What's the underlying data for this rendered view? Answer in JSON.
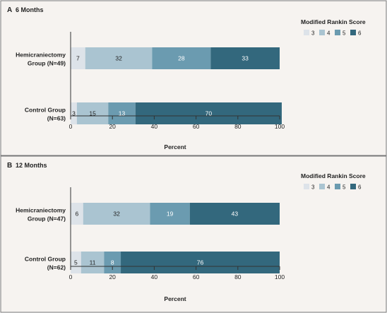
{
  "colors": {
    "score3": "#dde3e9",
    "score4": "#aac4d1",
    "score5": "#6b9bb0",
    "score6": "#33687d",
    "panel_bg": "#f6f3f0",
    "frame": "#777777",
    "axis": "#333333",
    "text": "#222222"
  },
  "chart_data": [
    {
      "type": "bar",
      "stacked": true,
      "orientation": "horizontal",
      "panel_letter": "A",
      "title": "6 Months",
      "xlabel": "Percent",
      "xlim": [
        0,
        100
      ],
      "xticks": [
        0,
        20,
        40,
        60,
        80,
        100
      ],
      "legend": {
        "title": "Modified Rankin Score",
        "placement": "top-right",
        "entries": [
          "3",
          "4",
          "5",
          "6"
        ]
      },
      "categories": [
        {
          "lines": [
            "Hemicraniectomy",
            "Group (N=49)"
          ]
        },
        {
          "lines": [
            "Control Group",
            "(N=63)"
          ]
        }
      ],
      "series": [
        {
          "name": "3",
          "values": [
            7,
            3
          ]
        },
        {
          "name": "4",
          "values": [
            32,
            15
          ]
        },
        {
          "name": "5",
          "values": [
            28,
            13
          ]
        },
        {
          "name": "6",
          "values": [
            33,
            70
          ]
        }
      ],
      "value_labels": [
        [
          "7",
          "32",
          "28",
          "33"
        ],
        [
          "3",
          "15",
          "13",
          "70"
        ]
      ]
    },
    {
      "type": "bar",
      "stacked": true,
      "orientation": "horizontal",
      "panel_letter": "B",
      "title": "12 Months",
      "xlabel": "Percent",
      "xlim": [
        0,
        100
      ],
      "xticks": [
        0,
        20,
        40,
        60,
        80,
        100
      ],
      "legend": {
        "title": "Modified Rankin Score",
        "placement": "top-right",
        "entries": [
          "3",
          "4",
          "5",
          "6"
        ]
      },
      "categories": [
        {
          "lines": [
            "Hemicraniectomy",
            "Group (N=47)"
          ]
        },
        {
          "lines": [
            "Control Group",
            "(N=62)"
          ]
        }
      ],
      "series": [
        {
          "name": "3",
          "values": [
            6,
            5
          ]
        },
        {
          "name": "4",
          "values": [
            32,
            11
          ]
        },
        {
          "name": "5",
          "values": [
            19,
            8
          ]
        },
        {
          "name": "6",
          "values": [
            43,
            76
          ]
        }
      ],
      "value_labels": [
        [
          "6",
          "32",
          "19",
          "43"
        ],
        [
          "5",
          "11",
          "8",
          "76"
        ]
      ]
    }
  ]
}
